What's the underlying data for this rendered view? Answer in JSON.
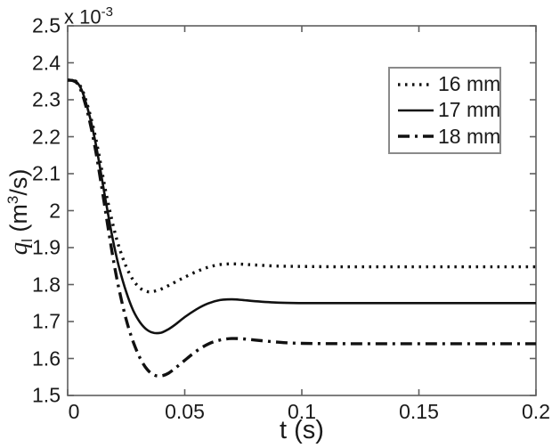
{
  "figure": {
    "multiplier": {
      "base": "x 10",
      "exponent": "-3"
    },
    "xlabel": "t (s)",
    "ylabel": {
      "symbol": "q",
      "subscript": "l",
      "unit_open": " (m",
      "unit_exp": "3",
      "unit_close": "/s)"
    }
  },
  "colors": {
    "line": "#111111",
    "axis_box": "#5f5f5f",
    "legend_border": "#8a8a8a",
    "background": "#ffffff",
    "text": "#1a1a1a"
  },
  "legend": {
    "items": [
      {
        "label": "16 mm",
        "linestyle": "dotted"
      },
      {
        "label": "17 mm",
        "linestyle": "solid"
      },
      {
        "label": "18 mm",
        "linestyle": "dashdot"
      }
    ]
  },
  "chart_data": {
    "type": "line",
    "title": "",
    "xlabel": "t (s)",
    "ylabel": "q_l (m^3/s)",
    "y_units_multiplier": "x10^-3",
    "xlim": [
      0,
      0.2
    ],
    "ylim": [
      1.5,
      2.5
    ],
    "xtick_values": [
      0,
      0.05,
      0.1,
      0.15,
      0.2
    ],
    "xtick_labels": [
      "0",
      "0.05",
      "0.1",
      "0.15",
      "0.2"
    ],
    "ytick_values": [
      1.5,
      1.6,
      1.7,
      1.8,
      1.9,
      2.0,
      2.1,
      2.2,
      2.3,
      2.4,
      2.5
    ],
    "ytick_labels": [
      "1.5",
      "1.6",
      "1.7",
      "1.8",
      "1.9",
      "2",
      "2.1",
      "2.2",
      "2.3",
      "2.4",
      "2.5"
    ],
    "grid": false,
    "legend_position": "upper right",
    "x": [
      0,
      0.002,
      0.004,
      0.006,
      0.008,
      0.01,
      0.012,
      0.014,
      0.016,
      0.018,
      0.02,
      0.022,
      0.025,
      0.028,
      0.031,
      0.034,
      0.037,
      0.04,
      0.043,
      0.046,
      0.05,
      0.055,
      0.06,
      0.065,
      0.07,
      0.075,
      0.08,
      0.09,
      0.1,
      0.12,
      0.15,
      0.2
    ],
    "series": [
      {
        "name": "16 mm",
        "linestyle": "dotted",
        "values": [
          2.353,
          2.353,
          2.348,
          2.33,
          2.295,
          2.25,
          2.195,
          2.13,
          2.06,
          2.0,
          1.945,
          1.9,
          1.848,
          1.812,
          1.79,
          1.781,
          1.782,
          1.788,
          1.797,
          1.807,
          1.82,
          1.835,
          1.847,
          1.854,
          1.856,
          1.855,
          1.853,
          1.85,
          1.849,
          1.848,
          1.848,
          1.848
        ]
      },
      {
        "name": "17 mm",
        "linestyle": "solid",
        "values": [
          2.353,
          2.353,
          2.347,
          2.326,
          2.288,
          2.24,
          2.18,
          2.11,
          2.035,
          1.965,
          1.9,
          1.845,
          1.78,
          1.73,
          1.697,
          1.677,
          1.669,
          1.67,
          1.679,
          1.692,
          1.712,
          1.733,
          1.749,
          1.758,
          1.76,
          1.758,
          1.755,
          1.751,
          1.75,
          1.75,
          1.75,
          1.75
        ]
      },
      {
        "name": "18 mm",
        "linestyle": "dashdot",
        "values": [
          2.353,
          2.352,
          2.345,
          2.32,
          2.278,
          2.225,
          2.16,
          2.085,
          2.005,
          1.925,
          1.85,
          1.785,
          1.705,
          1.645,
          1.6,
          1.57,
          1.555,
          1.553,
          1.56,
          1.574,
          1.595,
          1.62,
          1.639,
          1.65,
          1.654,
          1.653,
          1.65,
          1.644,
          1.641,
          1.64,
          1.64,
          1.64
        ]
      }
    ]
  }
}
